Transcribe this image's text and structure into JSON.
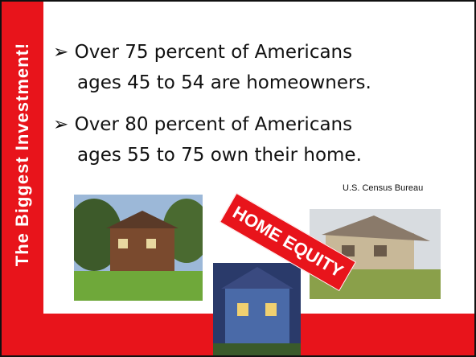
{
  "slide": {
    "side_title": "The Biggest Investment!",
    "bullets": [
      {
        "line1": "Over 75 percent of Americans",
        "line2": "ages 45 to 54 are homeowners."
      },
      {
        "line1": "Over 80 percent of Americans",
        "line2": "ages 55 to 75 own their home."
      }
    ],
    "source": "U.S. Census Bureau",
    "label": "HOME EQUITY"
  }
}
